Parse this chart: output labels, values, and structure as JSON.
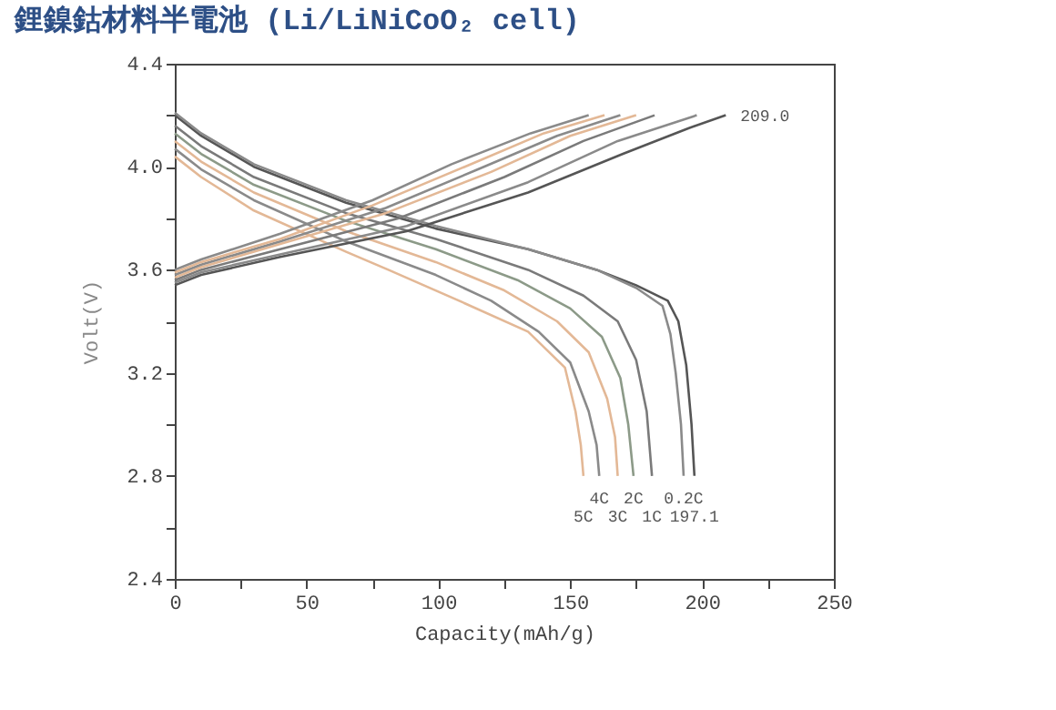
{
  "chart_data": {
    "type": "line",
    "title": "鋰鎳鈷材料半電池 (Li/LiNiCoO₂ cell)",
    "xlabel": "Capacity(mAh/g)",
    "ylabel": "Volt(V)",
    "xlim": [
      0,
      250
    ],
    "xticks": [
      0,
      {
        "value": 25,
        "label": null
      },
      50,
      {
        "value": 75,
        "label": null
      },
      100,
      {
        "value": 125,
        "label": null
      },
      150,
      {
        "value": 175,
        "label": null
      },
      200,
      {
        "value": 225,
        "label": null
      },
      250
    ],
    "ylim": [
      2.4,
      4.4
    ],
    "yticks": [
      2.4,
      {
        "value": 2.6,
        "label": null
      },
      2.8,
      {
        "value": 3.0,
        "label": null
      },
      3.2,
      {
        "value": 3.4,
        "label": null
      },
      3.6,
      {
        "value": 3.8,
        "label": null
      },
      {
        "value": 4,
        "label": "4.0"
      },
      {
        "value": 4.2,
        "label": null
      },
      4.4
    ],
    "grid": false,
    "series": [
      {
        "color": "#555555",
        "x": [
          0,
          10,
          30,
          65,
          99,
          134,
          160,
          175,
          187,
          191,
          194,
          196,
          197.1
        ],
        "values": [
          4.2,
          4.12,
          4.0,
          3.86,
          3.76,
          3.68,
          3.6,
          3.54,
          3.48,
          3.4,
          3.23,
          3.0,
          2.8
        ]
      },
      {
        "color": "#8a8a8a",
        "x": [
          0,
          10,
          30,
          65,
          99,
          134,
          160,
          175,
          185,
          188,
          190,
          192,
          193
        ],
        "values": [
          4.21,
          4.13,
          4.01,
          3.87,
          3.77,
          3.68,
          3.6,
          3.53,
          3.46,
          3.35,
          3.2,
          3.0,
          2.8
        ]
      },
      {
        "color": "#7a7a7a",
        "x": [
          0,
          10,
          30,
          65,
          99,
          134,
          155,
          168,
          175,
          179,
          181
        ],
        "values": [
          4.16,
          4.08,
          3.96,
          3.82,
          3.72,
          3.6,
          3.5,
          3.4,
          3.25,
          3.05,
          2.8
        ]
      },
      {
        "color": "#8c9a88",
        "x": [
          0,
          10,
          30,
          65,
          99,
          130,
          150,
          162,
          169,
          172,
          174
        ],
        "values": [
          4.13,
          4.05,
          3.93,
          3.79,
          3.68,
          3.56,
          3.45,
          3.34,
          3.18,
          3.0,
          2.8
        ]
      },
      {
        "color": "#e3b896",
        "x": [
          0,
          10,
          30,
          65,
          99,
          125,
          145,
          157,
          164,
          167,
          168
        ],
        "values": [
          4.1,
          4.02,
          3.9,
          3.75,
          3.63,
          3.52,
          3.4,
          3.28,
          3.1,
          2.95,
          2.8
        ]
      },
      {
        "color": "#8a8a8a",
        "x": [
          0,
          10,
          30,
          65,
          99,
          120,
          138,
          150,
          157,
          160,
          161
        ],
        "values": [
          4.07,
          3.99,
          3.87,
          3.71,
          3.58,
          3.48,
          3.36,
          3.24,
          3.05,
          2.92,
          2.8
        ]
      },
      {
        "color": "#e3b896",
        "x": [
          0,
          10,
          30,
          65,
          81,
          110,
          134,
          148,
          152,
          154,
          155
        ],
        "values": [
          4.04,
          3.96,
          3.83,
          3.67,
          3.6,
          3.47,
          3.36,
          3.22,
          3.05,
          2.92,
          2.8
        ]
      },
      {
        "color": "#555555",
        "x": [
          0,
          10,
          40,
          88,
          134,
          170,
          195,
          209
        ],
        "values": [
          3.54,
          3.58,
          3.65,
          3.75,
          3.9,
          4.05,
          4.15,
          4.2
        ]
      },
      {
        "color": "#8a8a8a",
        "x": [
          0,
          10,
          40,
          88,
          134,
          168,
          198
        ],
        "values": [
          3.55,
          3.59,
          3.66,
          3.77,
          3.94,
          4.1,
          4.2
        ]
      },
      {
        "color": "#7a7a7a",
        "x": [
          0,
          10,
          40,
          85,
          125,
          155,
          182
        ],
        "values": [
          3.56,
          3.6,
          3.68,
          3.8,
          3.96,
          4.1,
          4.2
        ]
      },
      {
        "color": "#e3b896",
        "x": [
          0,
          10,
          40,
          80,
          120,
          150,
          175
        ],
        "values": [
          3.57,
          3.61,
          3.7,
          3.82,
          3.98,
          4.12,
          4.2
        ]
      },
      {
        "color": "#8a8a8a",
        "x": [
          0,
          10,
          40,
          80,
          115,
          145,
          169
        ],
        "values": [
          3.58,
          3.62,
          3.71,
          3.84,
          3.99,
          4.12,
          4.2
        ]
      },
      {
        "color": "#e3b896",
        "x": [
          0,
          10,
          40,
          75,
          110,
          140,
          163
        ],
        "values": [
          3.59,
          3.63,
          3.72,
          3.85,
          4.0,
          4.13,
          4.2
        ]
      },
      {
        "color": "#8a8a8a",
        "x": [
          0,
          10,
          40,
          75,
          105,
          135,
          157
        ],
        "values": [
          3.6,
          3.64,
          3.74,
          3.87,
          4.01,
          4.13,
          4.2
        ]
      }
    ],
    "annotations": [
      {
        "text": "209.0",
        "x": 209,
        "y": 4.2
      },
      {
        "text": "197.1",
        "x": 197.1,
        "y": 2.8
      },
      {
        "text": "0.2C",
        "x": 193,
        "y": 2.8
      },
      {
        "text": "1C",
        "x": 181,
        "y": 2.8
      },
      {
        "text": "2C",
        "x": 174,
        "y": 2.8
      },
      {
        "text": "3C",
        "x": 168,
        "y": 2.8
      },
      {
        "text": "4C",
        "x": 161,
        "y": 2.8
      },
      {
        "text": "5C",
        "x": 155,
        "y": 2.8
      }
    ]
  }
}
